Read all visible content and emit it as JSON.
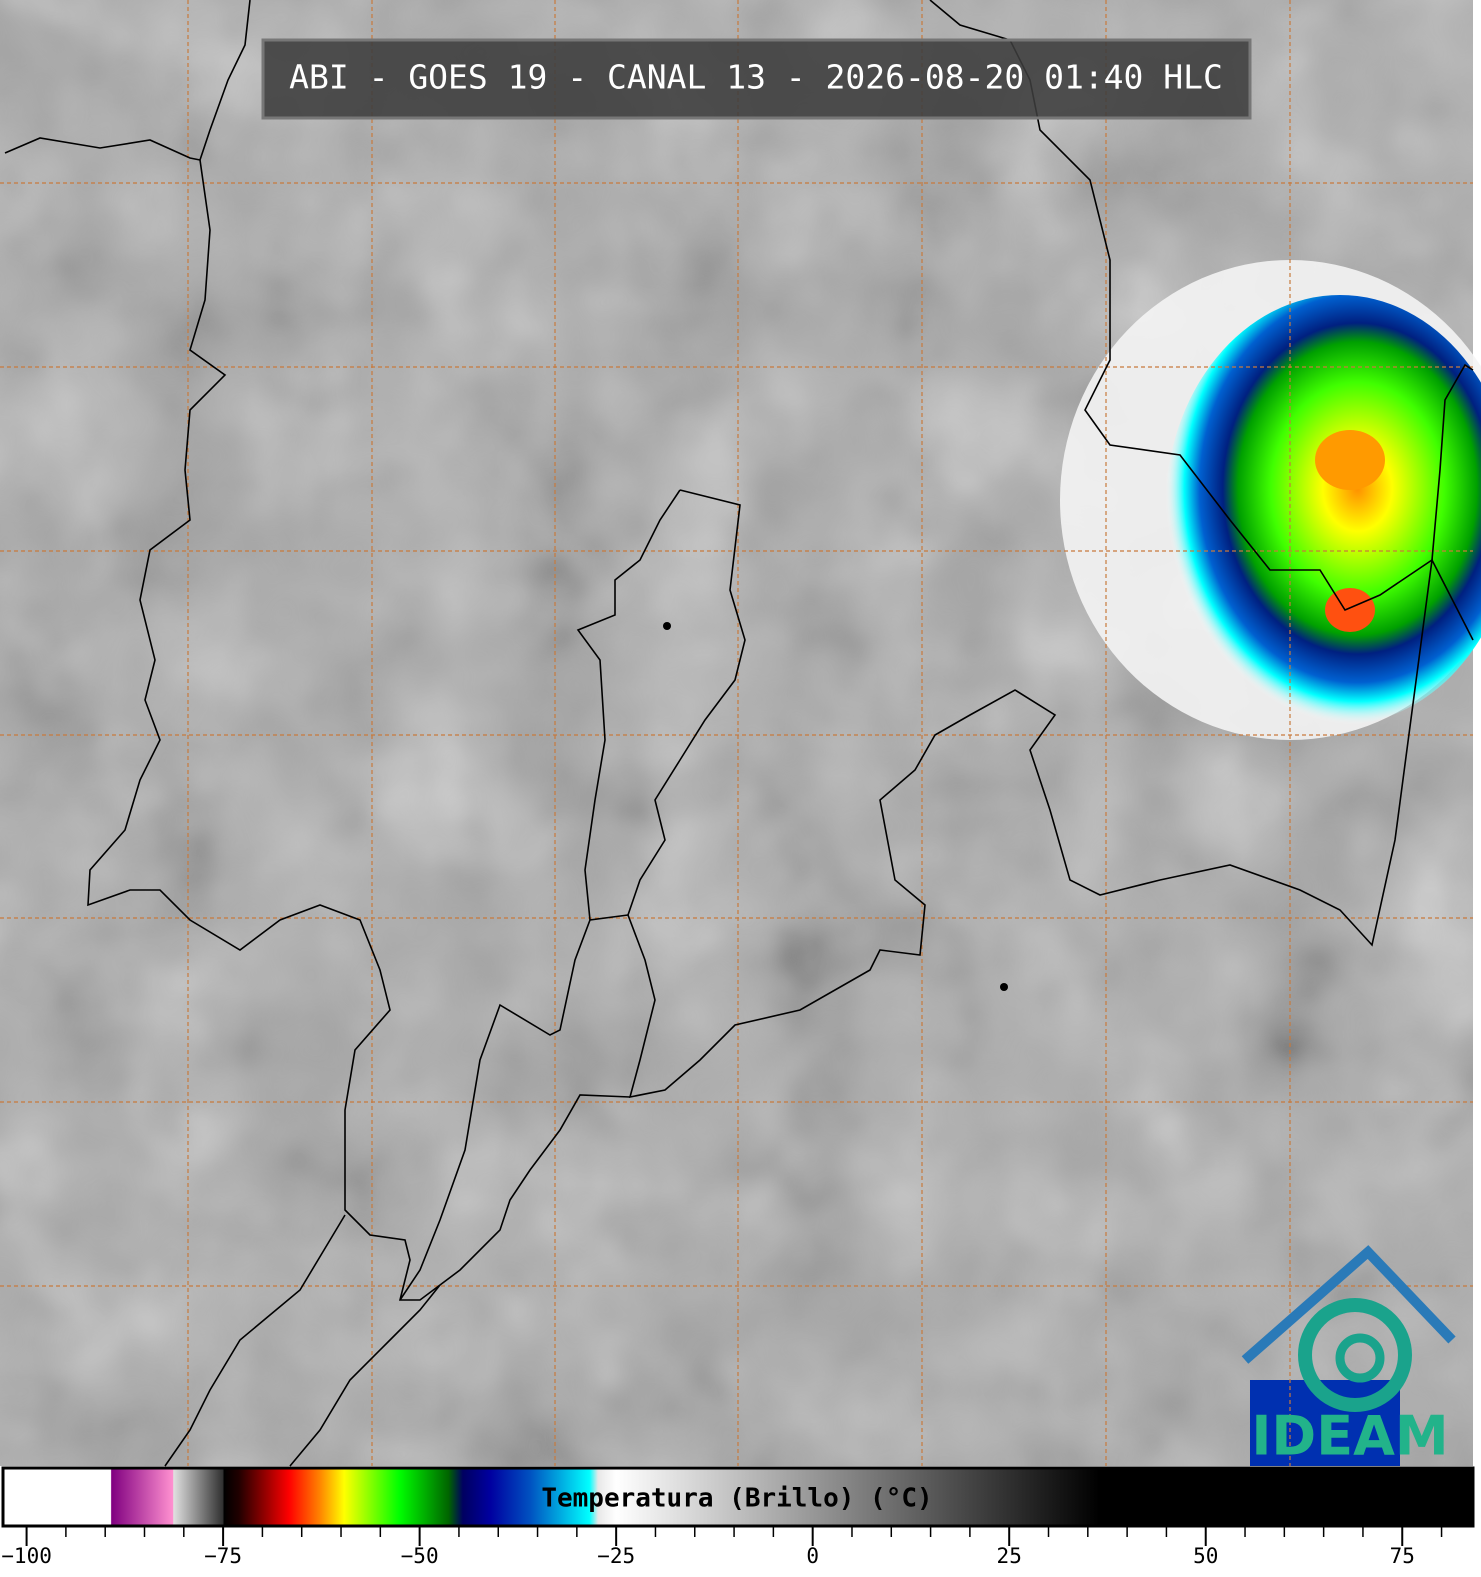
{
  "title": "ABI - GOES 19 - CANAL 13 - 2026-08-20 01:40 HLC",
  "logo": "IDEAM",
  "colorbar": {
    "label": "Temperatura (Brillo) (°C)",
    "xlim": [
      -103,
      84
    ],
    "xticks": [
      {
        "value": -100,
        "label": "−100"
      },
      {
        "value": -75,
        "label": "−75"
      },
      {
        "value": -50,
        "label": "−50"
      },
      {
        "value": -25,
        "label": "−25"
      },
      0,
      25,
      50,
      75
    ],
    "xminorticks": [
      -95,
      -90,
      -85,
      -80,
      -70,
      -65,
      -60,
      -55,
      -45,
      -40,
      -35,
      -30,
      -20,
      -15,
      -10,
      -5,
      5,
      10,
      15,
      20,
      30,
      35,
      40,
      45,
      55,
      60,
      65,
      70,
      80
    ],
    "colorscale": [
      {
        "value": -103,
        "color": "#ffffff"
      },
      {
        "value": -89.3,
        "color": "#ffffff"
      },
      {
        "value": -89.2,
        "color": "#800080"
      },
      {
        "value": -81.4,
        "color": "#ff90d0"
      },
      {
        "value": -81.3,
        "color": "#e0e0e0"
      },
      {
        "value": -75,
        "color": "#303030"
      },
      {
        "value": -74.9,
        "color": "#000000"
      },
      {
        "value": -73,
        "color": "#200000"
      },
      {
        "value": -66.6,
        "color": "#ff0000"
      },
      {
        "value": -62.8,
        "color": "#ff8000"
      },
      {
        "value": -59.6,
        "color": "#ffff00"
      },
      {
        "value": -52.6,
        "color": "#00ff00"
      },
      {
        "value": -46.3,
        "color": "#006400"
      },
      {
        "value": -44.5,
        "color": "#000060"
      },
      {
        "value": -41,
        "color": "#0000a0"
      },
      {
        "value": -36,
        "color": "#0050c0"
      },
      {
        "value": -28.4,
        "color": "#00ffff"
      },
      {
        "value": -27.3,
        "color": "#e8e8e8"
      },
      {
        "value": -25,
        "color": "#ffffff"
      },
      {
        "value": 36.5,
        "color": "#000000"
      },
      {
        "value": 84,
        "color": "#000000"
      }
    ]
  }
}
